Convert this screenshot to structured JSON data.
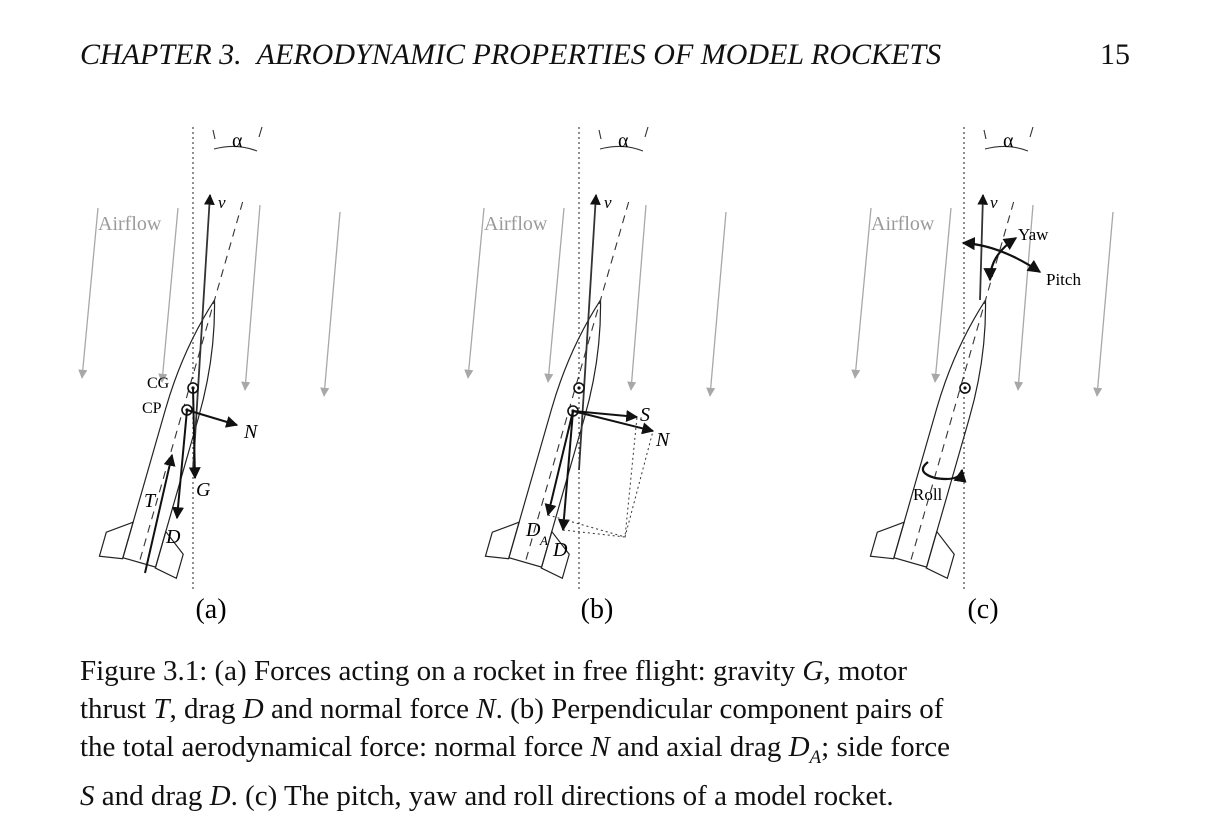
{
  "header": {
    "chapter": "CHAPTER 3.",
    "title": "AERODYNAMIC PROPERTIES OF MODEL ROCKETS",
    "page_number": "15"
  },
  "figure": {
    "panels": [
      {
        "label": "(a)",
        "airflow": "Airflow",
        "alpha": "α",
        "velocity": "v",
        "cg": "CG",
        "cp": "CP",
        "normal_force": "N",
        "gravity": "G",
        "thrust": "T",
        "drag": "D"
      },
      {
        "label": "(b)",
        "airflow": "Airflow",
        "alpha": "α",
        "velocity": "v",
        "side_force": "S",
        "normal_force": "N",
        "axial_drag": "D",
        "axial_sub": "A",
        "drag": "D"
      },
      {
        "label": "(c)",
        "airflow": "Airflow",
        "alpha": "α",
        "velocity": "v",
        "yaw": "Yaw",
        "pitch": "Pitch",
        "roll": "Roll"
      }
    ]
  },
  "caption": {
    "l1_a": "Figure 3.1:  (a) Forces acting on a rocket in free flight:  gravity ",
    "l1_G": "G",
    "l1_b": ", motor",
    "l2_a": "thrust ",
    "l2_T": "T",
    "l2_b": ", drag ",
    "l2_D": "D",
    "l2_c": " and normal force ",
    "l2_N": "N",
    "l2_d": ". (b) Perpendicular component pairs of",
    "l3_a": "the total aerodynamical force: normal force ",
    "l3_N": "N",
    "l3_b": " and axial drag ",
    "l3_DA": "D",
    "l3_sub": "A",
    "l3_c": "; side force",
    "l4_S": "S",
    "l4_a": " and drag ",
    "l4_D": "D",
    "l4_b": ". (c) The pitch, yaw and roll directions of a model rocket."
  }
}
